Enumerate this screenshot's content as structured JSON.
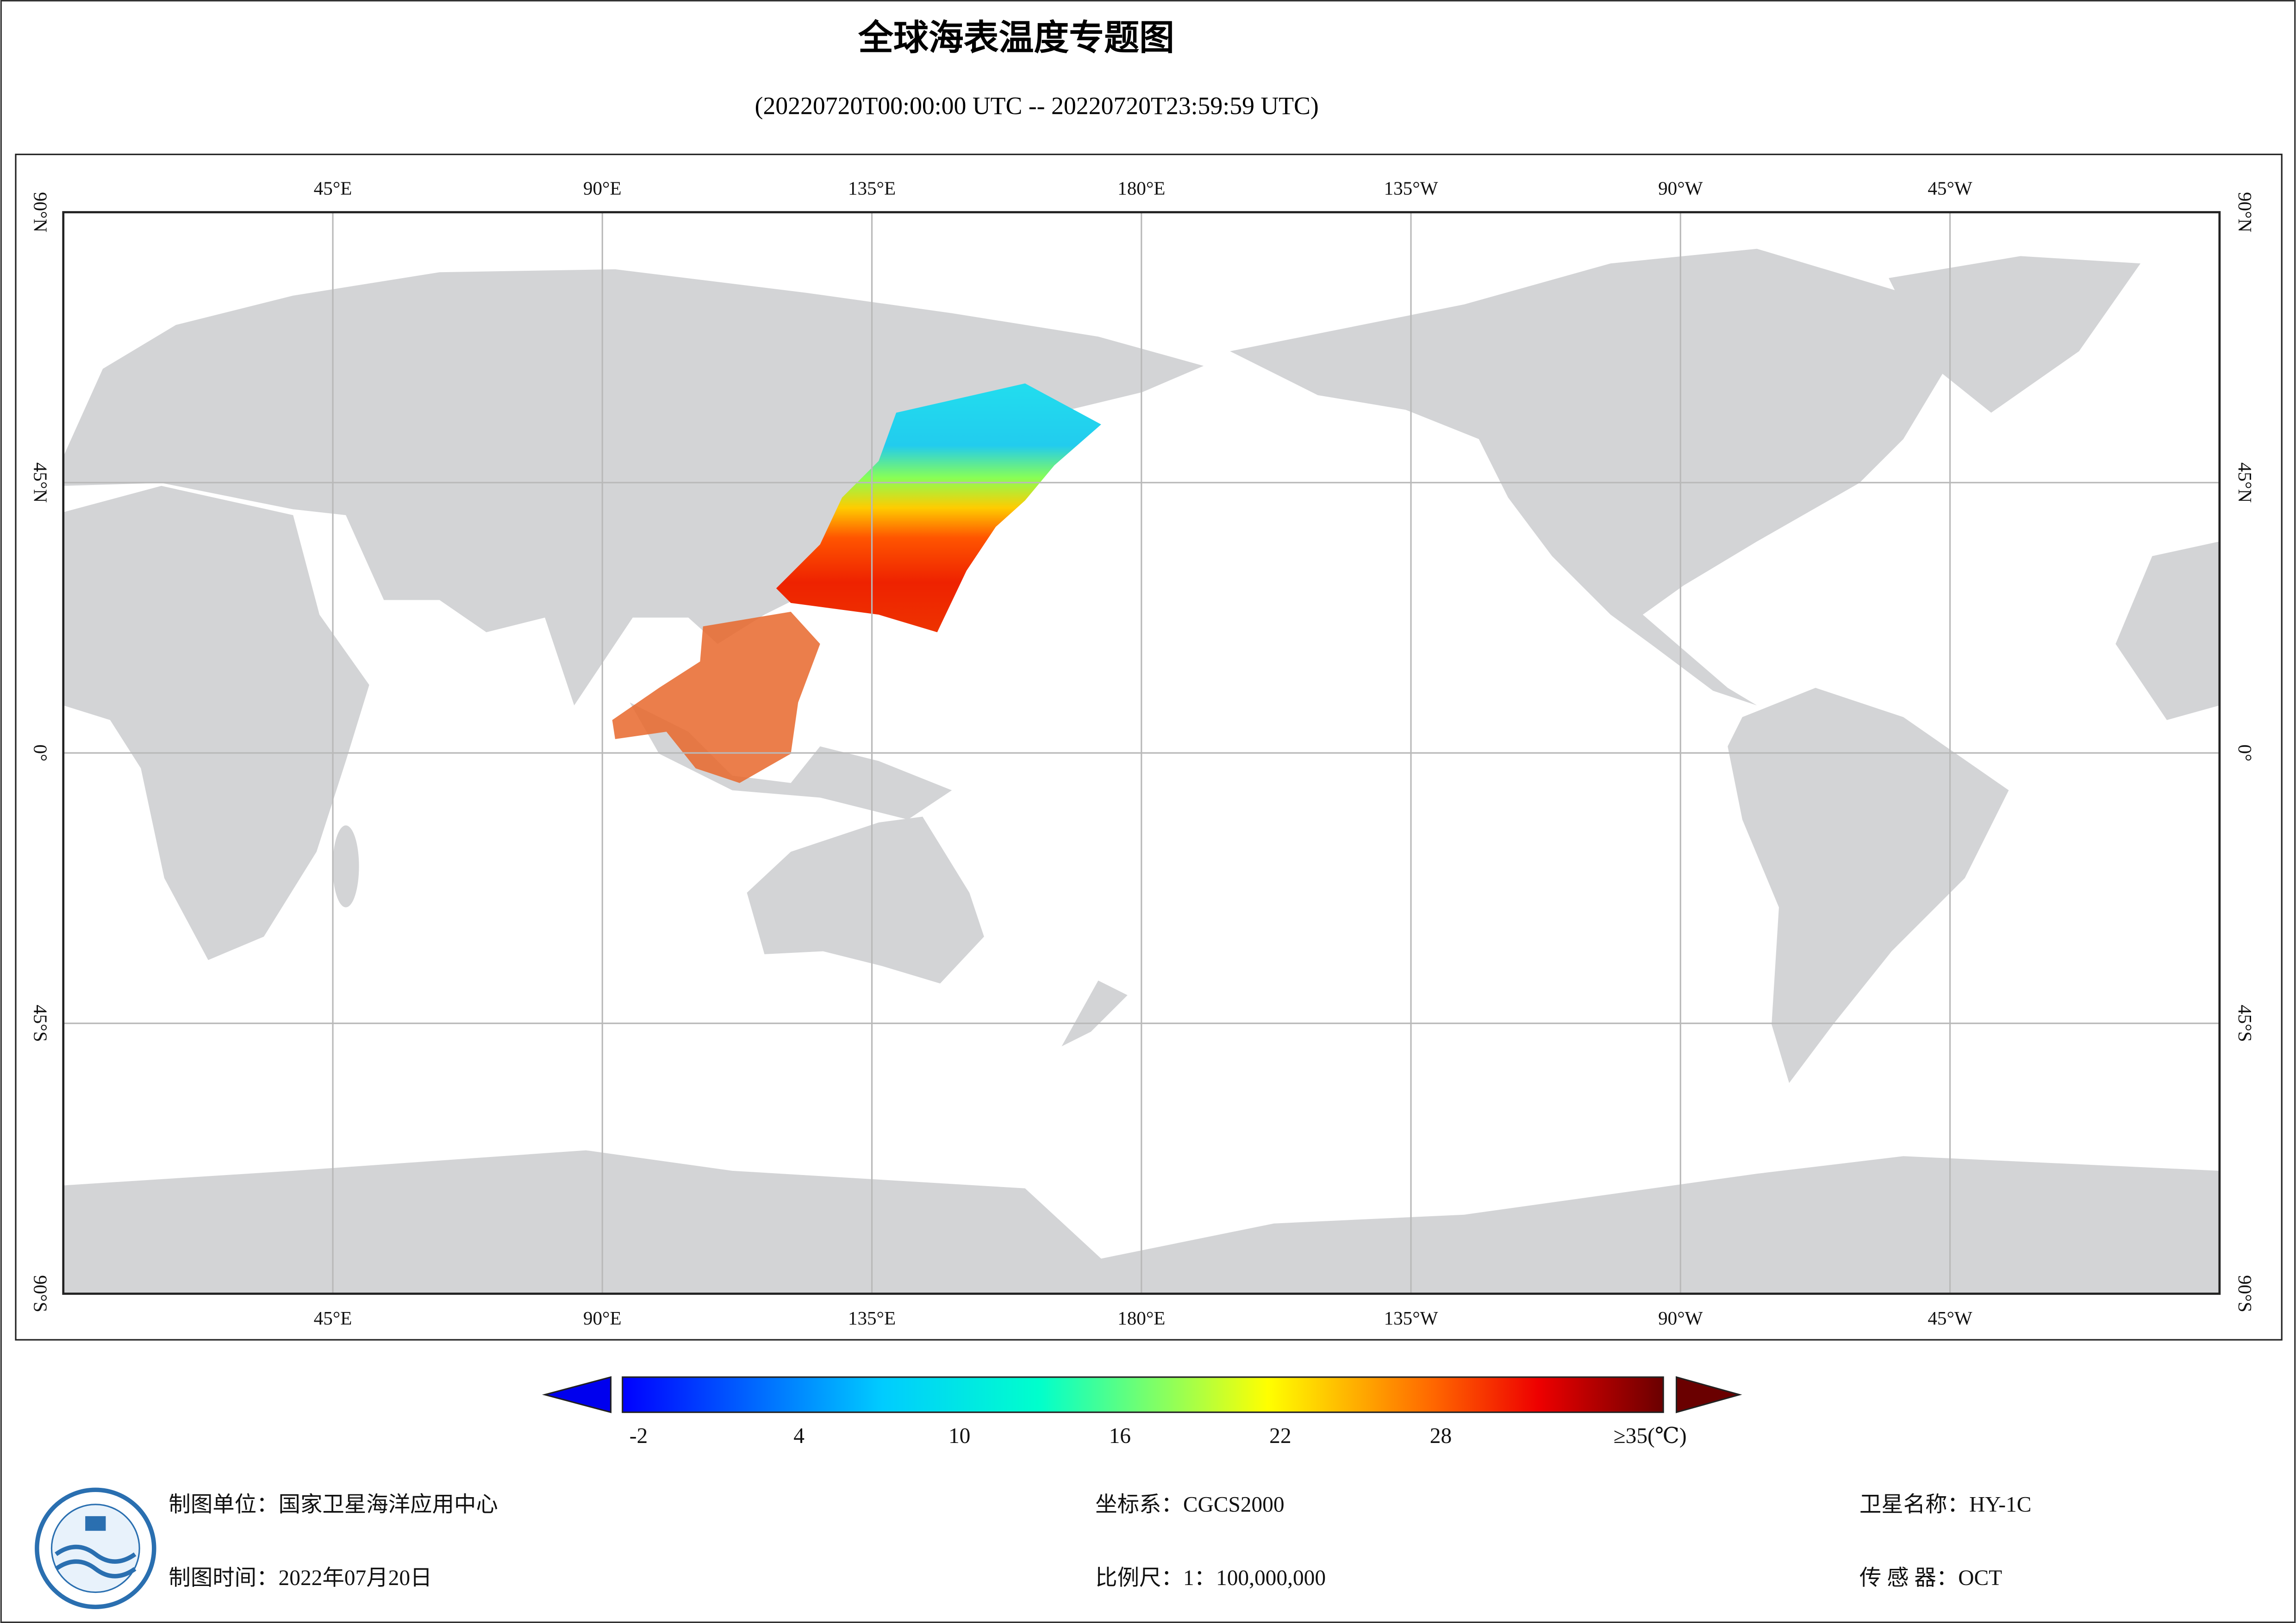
{
  "header": {
    "title": "全球海表温度专题图",
    "subtitle": "(20220720T00:00:00 UTC -- 20220720T23:59:59 UTC)"
  },
  "map": {
    "lon_labels": [
      "45°E",
      "90°E",
      "135°E",
      "180°E",
      "135°W",
      "90°W",
      "45°W"
    ],
    "lat_labels": [
      "90°N",
      "45°N",
      "0°",
      "45°S",
      "90°S"
    ]
  },
  "colorbar": {
    "ticks": [
      "-2",
      "4",
      "10",
      "16",
      "22",
      "28"
    ],
    "max_label": "≥35(℃)"
  },
  "footer": {
    "unit": "制图单位：国家卫星海洋应用中心",
    "date": "制图时间：2022年07月20日",
    "crs": "坐标系：CGCS2000",
    "scale": "比例尺：1：100,000,000",
    "satellite": "卫星名称：HY-1C",
    "sensor": "传 感 器：OCT"
  }
}
